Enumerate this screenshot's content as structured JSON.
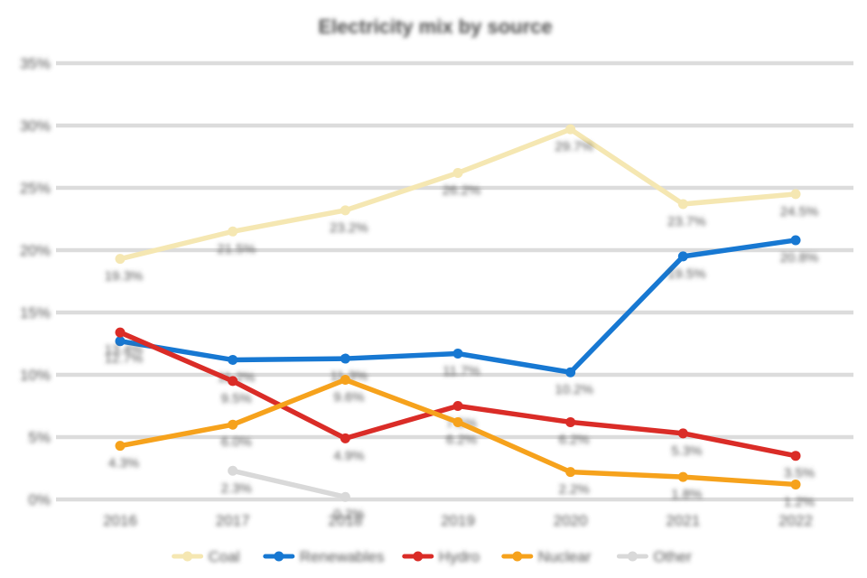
{
  "appearance": {
    "background": "#ffffff",
    "text_blurred": true
  },
  "colors": {
    "grid": "#dcdcdc",
    "title": "#4f4f4f",
    "text": "#555555"
  },
  "chart_data": {
    "type": "line",
    "title": "Electricity mix by source",
    "categories": [
      "2016",
      "2017",
      "2018",
      "2019",
      "2020",
      "2021",
      "2022"
    ],
    "yticks": [
      "0%",
      "5%",
      "10%",
      "15%",
      "20%",
      "25%",
      "30%",
      "35%"
    ],
    "ylim": [
      0,
      35
    ],
    "ylabel": "",
    "xlabel": "",
    "grid": true,
    "legend_position": "bottom",
    "series": [
      {
        "name": "Coal",
        "color": "#f5e7b2",
        "values": [
          19.3,
          21.5,
          23.2,
          26.2,
          29.7,
          23.7,
          24.5
        ]
      },
      {
        "name": "Renewables",
        "color": "#1778d2",
        "values": [
          12.7,
          11.2,
          11.3,
          11.7,
          10.2,
          19.5,
          20.8
        ]
      },
      {
        "name": "Hydro",
        "color": "#da2c27",
        "values": [
          13.4,
          9.5,
          4.9,
          7.5,
          6.2,
          5.3,
          3.5
        ]
      },
      {
        "name": "Nuclear",
        "color": "#f6a21c",
        "values": [
          4.3,
          6.0,
          9.6,
          6.2,
          2.2,
          1.8,
          1.2
        ]
      },
      {
        "name": "Other",
        "color": "#d9d9d9",
        "values": [
          null,
          2.3,
          0.2,
          null,
          null,
          null,
          null
        ]
      }
    ]
  }
}
